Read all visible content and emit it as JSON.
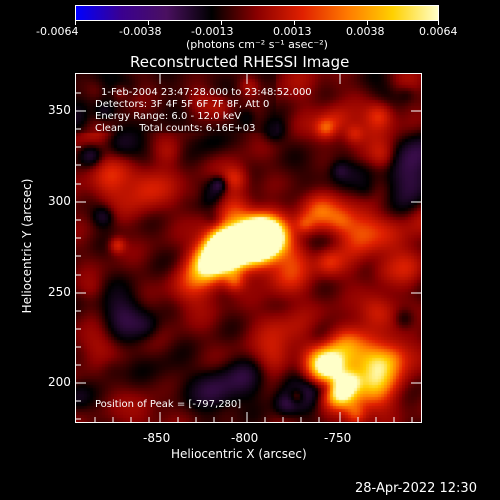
{
  "colorbar": {
    "ticks": [
      "-0.0064",
      "-0.0038",
      "-0.0013",
      "0.0013",
      "0.0038",
      "0.0064"
    ],
    "units": "(photons cm⁻² s⁻¹ asec⁻²)"
  },
  "plot": {
    "title": "Reconstructed RHESSI Image",
    "xlabel": "Heliocentric X (arcsec)",
    "ylabel": "Heliocentric Y (arcsec)",
    "xticks": [
      "-850",
      "-800",
      "-750"
    ],
    "yticks": [
      "350",
      "300",
      "250",
      "200"
    ],
    "info": {
      "time": "1-Feb-2004 23:47:28.000 to 23:48:52.000",
      "detectors": "Detectors: 3F 4F 5F 6F 7F 8F, Att 0",
      "energy": "Energy Range: 6.0 - 12.0 keV",
      "clean": "Clean     Total counts: 6.16E+03"
    },
    "peak": "Position of Peak = [-797,280]"
  },
  "footer": {
    "date": "28-Apr-2022 12:30"
  },
  "colors": {
    "background": "#000000",
    "foreground": "#ffffff",
    "colormap": [
      "#0000ff",
      "#3a0090",
      "#4a1060",
      "#000000",
      "#8a0000",
      "#e02000",
      "#ff7a00",
      "#ffd000",
      "#ffffc8"
    ]
  }
}
